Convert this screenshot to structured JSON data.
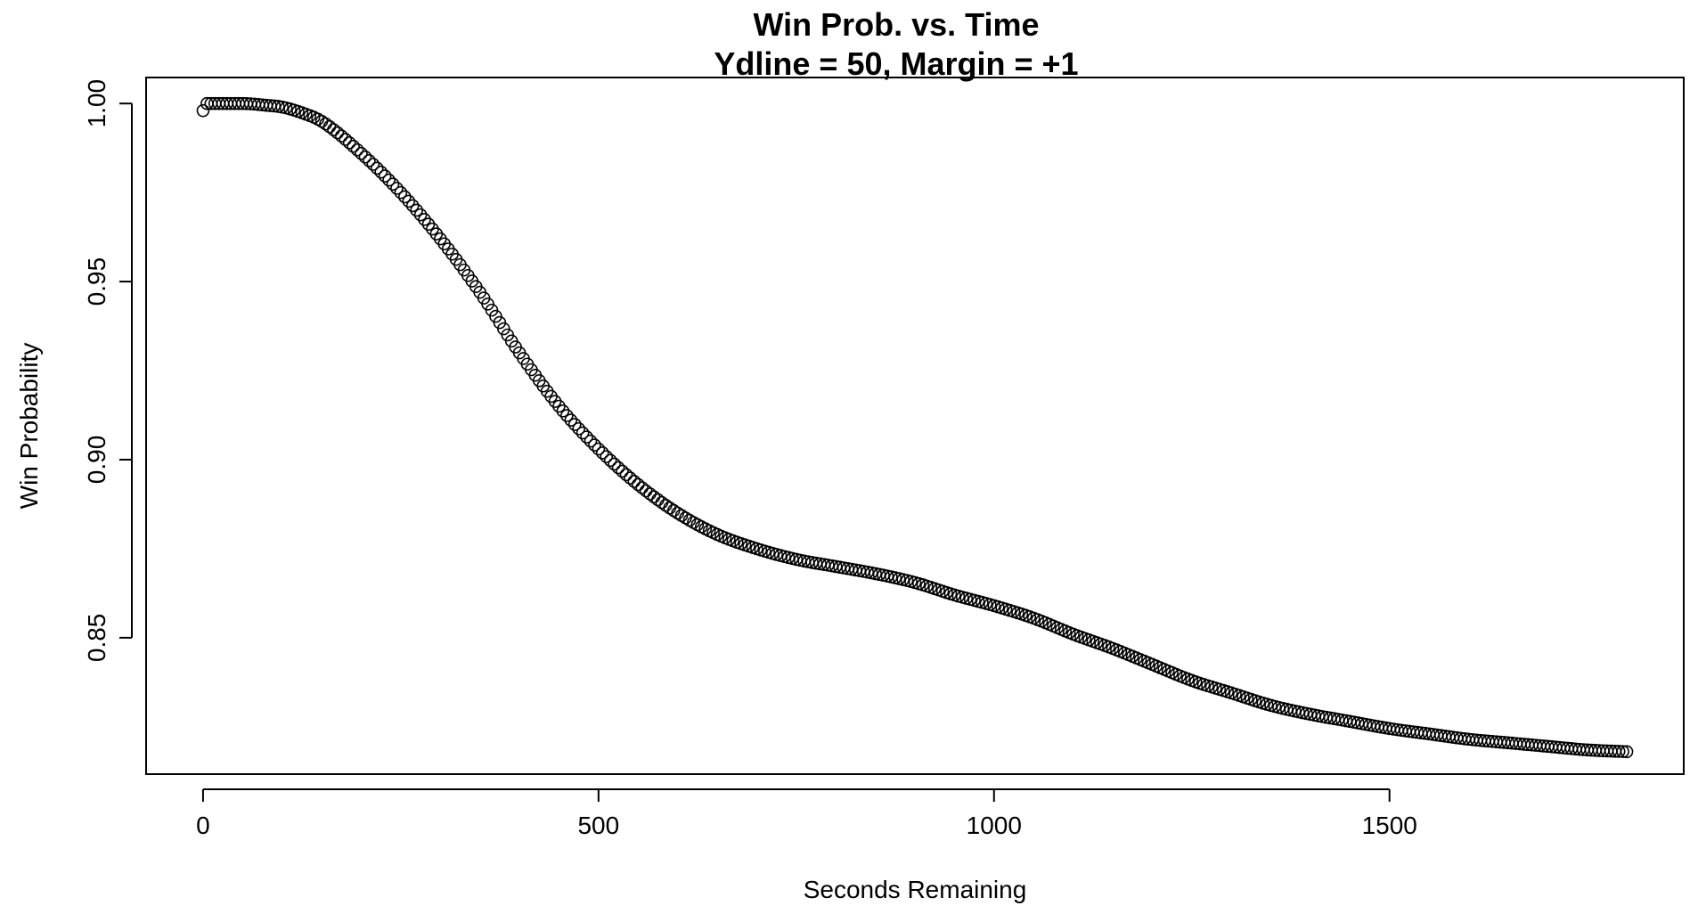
{
  "chart_data": {
    "type": "scatter",
    "title": "Win Prob. vs. Time",
    "subtitle": "Ydline = 50, Margin = +1",
    "xlabel": "Seconds Remaining",
    "ylabel": "Win Probability",
    "xlim": [
      -72,
      1872
    ],
    "ylim": [
      0.8117,
      1.0073
    ],
    "xticks": [
      0,
      500,
      1000,
      1500
    ],
    "xtick_labels": [
      "0",
      "500",
      "1000",
      "1500"
    ],
    "yticks": [
      0.85,
      0.9,
      0.95,
      1.0
    ],
    "ytick_labels": [
      "0.85",
      "0.90",
      "0.95",
      "1.00"
    ],
    "grid": false,
    "marker": "open-circle",
    "x_step": 5,
    "curve_knots": {
      "x": [
        0,
        5,
        10,
        50,
        80,
        100,
        130,
        150,
        200,
        250,
        300,
        350,
        400,
        450,
        500,
        550,
        600,
        650,
        700,
        750,
        800,
        850,
        900,
        950,
        1000,
        1050,
        1100,
        1150,
        1200,
        1250,
        1300,
        1350,
        1400,
        1450,
        1500,
        1550,
        1600,
        1650,
        1700,
        1750,
        1800
      ],
      "y": [
        0.998,
        1.0,
        1.0,
        1.0,
        0.9995,
        0.999,
        0.997,
        0.995,
        0.986,
        0.975,
        0.962,
        0.947,
        0.93,
        0.915,
        0.903,
        0.893,
        0.885,
        0.879,
        0.875,
        0.872,
        0.87,
        0.868,
        0.8655,
        0.862,
        0.859,
        0.8555,
        0.851,
        0.847,
        0.8425,
        0.838,
        0.8345,
        0.831,
        0.8285,
        0.8265,
        0.8245,
        0.823,
        0.8215,
        0.8205,
        0.8195,
        0.8185,
        0.818
      ]
    }
  }
}
